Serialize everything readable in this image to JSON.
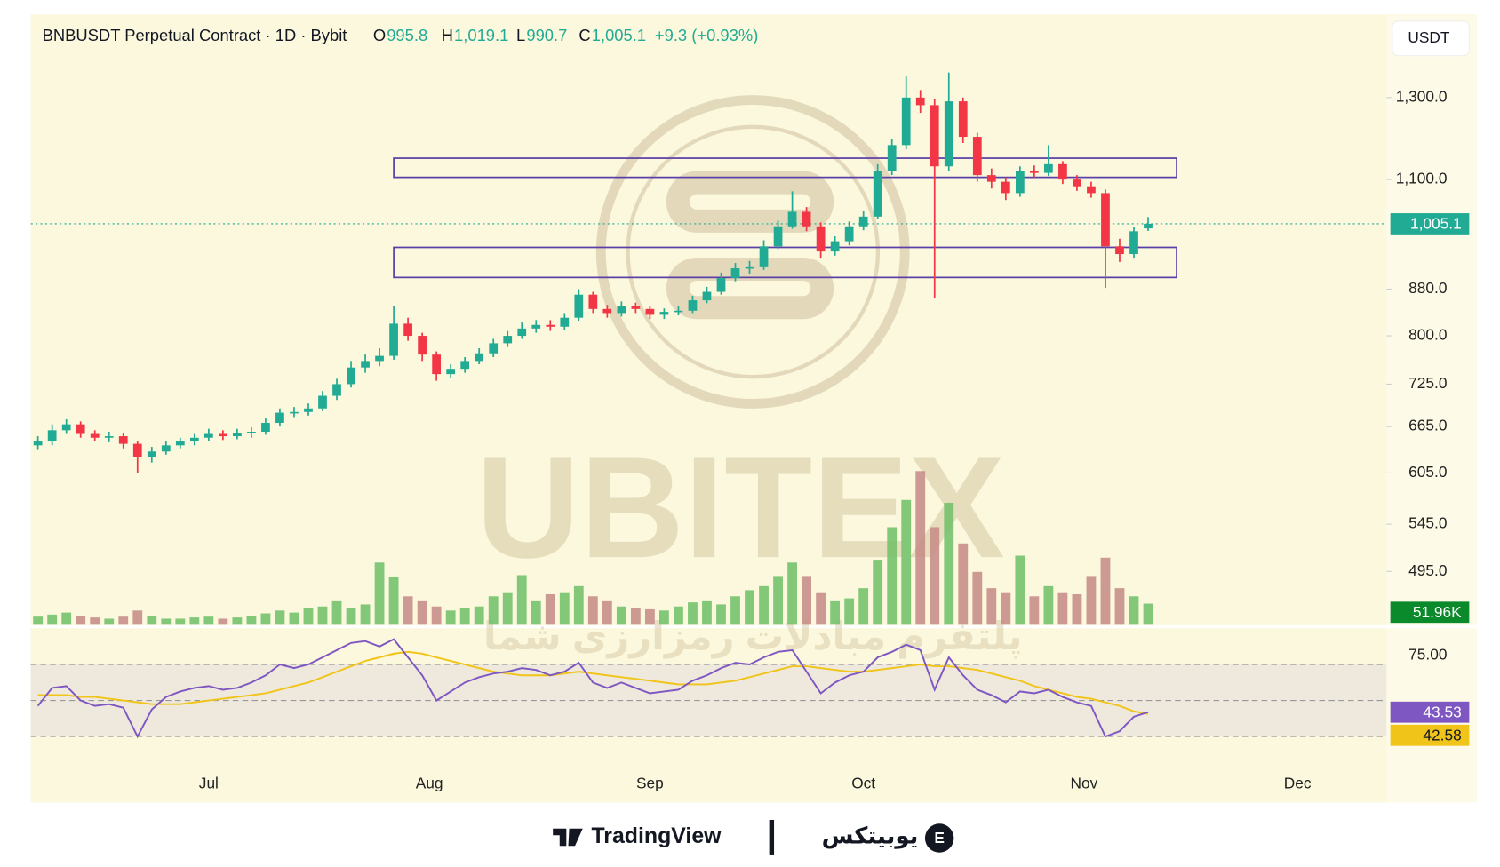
{
  "chart_data": {
    "type": "candlestick",
    "title": "BNBUSDT Perpetual Contract · 1D · Bybit",
    "legend": [
      {
        "key": "O",
        "text": "995.8"
      },
      {
        "key": "H",
        "text": "1,019.1"
      },
      {
        "key": "L",
        "text": "990.7"
      },
      {
        "key": "C",
        "text": "1,005.1"
      }
    ],
    "change": "+9.3 (+0.93%)",
    "currency": "USDT",
    "open": [
      640,
      645,
      660,
      668,
      655,
      650,
      652,
      642,
      625,
      632,
      640,
      645,
      650,
      655,
      652,
      656,
      658,
      670,
      684,
      685,
      690,
      708,
      725,
      750,
      760,
      768,
      820,
      800,
      770,
      740,
      748,
      760,
      772,
      788,
      800,
      812,
      818,
      815,
      830,
      870,
      845,
      838,
      850,
      845,
      835,
      840,
      842,
      860,
      875,
      900,
      918,
      920,
      960,
      1000,
      1030,
      1000,
      950,
      970,
      1000,
      1020,
      1120,
      1180,
      1300,
      1280,
      1130,
      1290,
      1200,
      1110,
      1095,
      1070,
      1120,
      1115,
      1135,
      1100,
      1085,
      1070,
      960,
      945,
      995.8
    ],
    "high": [
      652,
      668,
      675,
      672,
      660,
      658,
      656,
      646,
      638,
      646,
      650,
      655,
      662,
      660,
      662,
      664,
      676,
      690,
      692,
      697,
      715,
      733,
      760,
      770,
      780,
      850,
      830,
      805,
      775,
      755,
      766,
      780,
      795,
      808,
      822,
      826,
      826,
      838,
      880,
      875,
      852,
      858,
      856,
      850,
      846,
      850,
      868,
      884,
      910,
      928,
      932,
      972,
      1012,
      1074,
      1040,
      1008,
      980,
      1010,
      1032,
      1135,
      1195,
      1357,
      1320,
      1295,
      1368,
      1300,
      1210,
      1125,
      1105,
      1130,
      1132,
      1180,
      1142,
      1110,
      1095,
      1078,
      975,
      998,
      1019.1
    ],
    "low": [
      634,
      640,
      655,
      650,
      645,
      644,
      636,
      605,
      618,
      628,
      636,
      640,
      645,
      647,
      648,
      650,
      654,
      665,
      678,
      680,
      686,
      702,
      720,
      742,
      752,
      762,
      792,
      760,
      730,
      734,
      742,
      755,
      766,
      782,
      795,
      805,
      808,
      810,
      825,
      838,
      830,
      832,
      838,
      828,
      828,
      834,
      838,
      855,
      870,
      894,
      908,
      915,
      955,
      995,
      990,
      938,
      942,
      962,
      992,
      1015,
      1110,
      1170,
      1260,
      864,
      1120,
      1185,
      1095,
      1080,
      1055,
      1062,
      1105,
      1108,
      1090,
      1075,
      1060,
      882,
      930,
      938,
      990.7
    ],
    "close": [
      645,
      660,
      668,
      655,
      650,
      652,
      642,
      625,
      632,
      640,
      645,
      650,
      655,
      652,
      656,
      658,
      670,
      684,
      685,
      690,
      708,
      725,
      750,
      760,
      768,
      820,
      800,
      770,
      740,
      748,
      760,
      772,
      788,
      800,
      812,
      818,
      815,
      830,
      870,
      845,
      838,
      850,
      845,
      835,
      840,
      842,
      860,
      875,
      900,
      918,
      920,
      960,
      1000,
      1030,
      1000,
      950,
      970,
      1000,
      1020,
      1120,
      1180,
      1300,
      1280,
      1130,
      1290,
      1200,
      1110,
      1095,
      1070,
      1120,
      1115,
      1135,
      1100,
      1085,
      1070,
      960,
      945,
      990,
      1005.1
    ],
    "price_label": "1,005.1",
    "volume": [
      20,
      25,
      30,
      22,
      18,
      15,
      20,
      35,
      22,
      15,
      15,
      18,
      20,
      15,
      18,
      22,
      28,
      35,
      30,
      40,
      45,
      60,
      40,
      50,
      153,
      118,
      70,
      60,
      45,
      35,
      40,
      45,
      70,
      80,
      122,
      60,
      75,
      80,
      95,
      70,
      60,
      45,
      40,
      38,
      35,
      45,
      55,
      60,
      50,
      70,
      85,
      95,
      120,
      153,
      120,
      80,
      60,
      65,
      90,
      160,
      240,
      307,
      378,
      240,
      300,
      200,
      130,
      90,
      80,
      170,
      70,
      95,
      80,
      75,
      120,
      165,
      90,
      70,
      51.96
    ],
    "volume_label": "51.96K",
    "volume_ylim": [
      0,
      390
    ],
    "rsi": [
      47,
      57,
      58,
      50,
      47,
      48,
      46,
      30,
      45,
      52,
      55,
      57,
      58,
      56,
      57,
      60,
      64,
      70,
      68,
      70,
      74,
      78,
      82,
      83,
      80,
      84,
      74,
      64,
      50,
      55,
      60,
      63,
      65,
      66,
      68,
      67,
      64,
      66,
      71,
      60,
      57,
      60,
      57,
      54,
      55,
      56,
      61,
      64,
      68,
      71,
      70,
      74,
      77,
      78,
      66,
      54,
      60,
      64,
      66,
      74,
      77,
      81,
      78,
      56,
      74,
      64,
      56,
      53,
      49,
      55,
      54,
      56,
      52,
      49,
      47,
      30,
      33,
      41,
      43.53
    ],
    "rsi_ma": [
      53,
      53,
      53,
      52,
      52,
      51,
      50,
      49,
      48,
      48,
      48,
      49,
      50,
      51,
      52,
      53,
      54,
      56,
      58,
      60,
      63,
      66,
      69,
      72,
      74,
      76,
      77,
      76,
      74,
      72,
      70,
      68,
      66,
      65,
      64,
      64,
      64,
      65,
      66,
      65,
      64,
      63,
      62,
      61,
      60,
      59,
      59,
      59,
      60,
      61,
      63,
      65,
      67,
      69,
      69,
      68,
      67,
      66,
      66,
      67,
      68,
      69,
      70,
      69,
      69,
      68,
      67,
      65,
      63,
      61,
      58,
      56,
      54,
      52,
      51,
      49,
      47,
      44,
      42.58
    ],
    "rsi_label": "43.53",
    "rsi_ma_label": "42.58",
    "rsi_ylim": [
      12,
      89.4
    ],
    "rsi_yticks": [
      {
        "value": 75,
        "label": "75.00"
      }
    ],
    "rsi_levels": [
      70,
      50,
      30
    ],
    "log": true,
    "ylim": [
      444,
      1540
    ],
    "yticks": [
      {
        "value": 1300,
        "label": "1,300.0"
      },
      {
        "value": 1100,
        "label": "1,100.0"
      },
      {
        "value": 880,
        "label": "880.0"
      },
      {
        "value": 800,
        "label": "800.0"
      },
      {
        "value": 725,
        "label": "725.0"
      },
      {
        "value": 665,
        "label": "665.0"
      },
      {
        "value": 605,
        "label": "605.0"
      },
      {
        "value": 545,
        "label": "545.0"
      },
      {
        "value": 495,
        "label": "495.0"
      }
    ],
    "xlim": [
      0,
      101.6
    ],
    "xticks": [
      {
        "value": 12.5,
        "label": "Jul"
      },
      {
        "value": 28,
        "label": "Aug"
      },
      {
        "value": 43.5,
        "label": "Sep"
      },
      {
        "value": 58.5,
        "label": "Oct"
      },
      {
        "value": 74,
        "label": "Nov"
      },
      {
        "value": 89,
        "label": "Dec"
      }
    ],
    "zones": [
      {
        "from": 25.5,
        "to": 80.5,
        "top": 1149,
        "bottom": 1105
      },
      {
        "from": 25.5,
        "to": 80.5,
        "top": 958,
        "bottom": 901
      }
    ],
    "up_color": "#22ab94",
    "down_color": "#f23645",
    "volume_up_color": "#6dbf67",
    "volume_down_color": "#c48a86",
    "rsi_color": "#7e57c2",
    "rsi_ma_color": "#f0c419",
    "zone_color": "#5b3fa8",
    "watermark": "UBITEX",
    "watermark_sub": "پلتفرم مبادلات رمزارزی شما",
    "footer": {
      "left": "TradingView",
      "right": "یوبیتکس"
    }
  }
}
